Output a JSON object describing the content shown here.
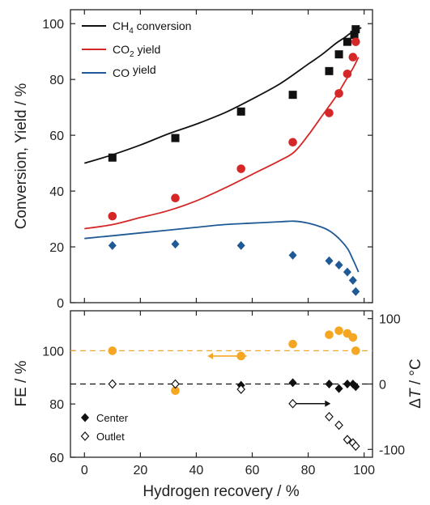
{
  "colors": {
    "ch4": "#111111",
    "co2": "#d62728",
    "co": "#1f5a96",
    "fe": "#f5a623",
    "center": "#111111",
    "outlet": "#111111"
  },
  "chart_data": [
    {
      "type": "scatter",
      "panel": "top",
      "xlabel": "Hydrogen recovery / %",
      "ylabel": "Conversion, Yield / %",
      "xlim": [
        -5,
        103
      ],
      "ylim": [
        0,
        105
      ],
      "x_ticks": [
        0,
        20,
        40,
        60,
        80,
        100
      ],
      "y_ticks": [
        0,
        20,
        40,
        60,
        80,
        100
      ],
      "legend": {
        "placement": "top-left",
        "entries": [
          {
            "key": "ch4",
            "pre": "CH",
            "sub": "4",
            "post": " conversion"
          },
          {
            "key": "co2",
            "pre": "CO",
            "sub": "2",
            "post": " yield"
          },
          {
            "key": "co",
            "pre": "CO",
            "sub": "",
            "post": " yield"
          }
        ]
      },
      "series": [
        {
          "key": "ch4",
          "marker": "square",
          "points": [
            [
              10,
              52
            ],
            [
              32.5,
              59
            ],
            [
              56,
              68.5
            ],
            [
              74.5,
              74.5
            ],
            [
              87.5,
              83
            ],
            [
              91,
              89
            ],
            [
              94,
              93.5
            ],
            [
              96.5,
              96
            ],
            [
              97,
              98
            ]
          ],
          "line": [
            [
              0,
              50
            ],
            [
              10,
              53
            ],
            [
              20,
              56.5
            ],
            [
              30,
              60.5
            ],
            [
              40,
              64
            ],
            [
              50,
              68
            ],
            [
              60,
              73
            ],
            [
              70,
              78.5
            ],
            [
              80,
              85.5
            ],
            [
              85,
              89
            ],
            [
              90,
              93
            ],
            [
              93,
              95
            ],
            [
              95,
              96.5
            ],
            [
              97.5,
              98
            ],
            [
              99,
              98.5
            ]
          ]
        },
        {
          "key": "co2",
          "marker": "circle",
          "points": [
            [
              10,
              31
            ],
            [
              32.5,
              37.5
            ],
            [
              56,
              48
            ],
            [
              74.5,
              57.5
            ],
            [
              87.5,
              68
            ],
            [
              91,
              75
            ],
            [
              94,
              82
            ],
            [
              96,
              88
            ],
            [
              97,
              93.5
            ]
          ],
          "line": [
            [
              0,
              26.5
            ],
            [
              10,
              28
            ],
            [
              20,
              30.5
            ],
            [
              30,
              33
            ],
            [
              40,
              36.5
            ],
            [
              50,
              41
            ],
            [
              60,
              46
            ],
            [
              70,
              51
            ],
            [
              75,
              54
            ],
            [
              80,
              60
            ],
            [
              85,
              67
            ],
            [
              90,
              74
            ],
            [
              93,
              79
            ],
            [
              96,
              84
            ],
            [
              98,
              88
            ]
          ]
        },
        {
          "key": "co",
          "marker": "diamond",
          "points": [
            [
              10,
              20.5
            ],
            [
              32.5,
              21
            ],
            [
              56,
              20.5
            ],
            [
              74.5,
              17
            ],
            [
              87.5,
              15
            ],
            [
              91,
              13.5
            ],
            [
              94,
              11
            ],
            [
              96,
              8
            ],
            [
              97,
              4
            ]
          ],
          "line": [
            [
              0,
              23
            ],
            [
              10,
              24
            ],
            [
              20,
              25
            ],
            [
              30,
              26
            ],
            [
              40,
              27
            ],
            [
              50,
              28
            ],
            [
              60,
              28.5
            ],
            [
              70,
              29
            ],
            [
              75,
              29.2
            ],
            [
              80,
              28.5
            ],
            [
              85,
              27
            ],
            [
              88,
              25.5
            ],
            [
              91,
              23
            ],
            [
              94,
              19.5
            ],
            [
              96,
              15.5
            ],
            [
              98,
              11
            ]
          ]
        }
      ]
    },
    {
      "type": "scatter",
      "panel": "bottom",
      "xlabel": "Hydrogen recovery / %",
      "ylabel": "FE / %",
      "ylabel_right_pre": "Δ",
      "ylabel_right_italic": "T",
      "ylabel_right_post": " / °C",
      "xlim": [
        -5,
        103
      ],
      "ylim": [
        60,
        115
      ],
      "y2lim": [
        -112,
        112
      ],
      "x_ticks": [
        0,
        20,
        40,
        60,
        80,
        100
      ],
      "y_ticks": [
        60,
        80,
        100
      ],
      "y2_ticks": [
        -100,
        0,
        100
      ],
      "reference_lines": [
        {
          "axis": "left",
          "value": 100,
          "color": "#f5a623",
          "style": "dashed"
        },
        {
          "axis": "right",
          "value": 0,
          "color": "#111111",
          "style": "dashed"
        }
      ],
      "arrows": [
        {
          "direction": "left",
          "axis": "left",
          "x_from": 58,
          "x_to": 46,
          "y": 98,
          "color": "#f5a623"
        },
        {
          "direction": "right",
          "axis": "right",
          "x_from": 75,
          "x_to": 86,
          "y": -30,
          "color": "#111111"
        }
      ],
      "legend": {
        "placement": "bottom-left",
        "entries": [
          {
            "key": "center",
            "label": "Center",
            "marker": "diamond-filled"
          },
          {
            "key": "outlet",
            "label": "Outlet",
            "marker": "diamond-open"
          }
        ]
      },
      "series": [
        {
          "key": "fe",
          "axis": "left",
          "marker": "circle",
          "points": [
            [
              10,
              100
            ],
            [
              32.5,
              85
            ],
            [
              56,
              98
            ],
            [
              74.5,
              102.5
            ],
            [
              87.5,
              106
            ],
            [
              91,
              107.5
            ],
            [
              94,
              106.5
            ],
            [
              96,
              105
            ],
            [
              97,
              100
            ]
          ]
        },
        {
          "key": "center",
          "axis": "right",
          "marker": "diamond-filled",
          "points": [
            [
              10,
              0
            ],
            [
              32.5,
              0
            ],
            [
              56,
              -2
            ],
            [
              74.5,
              2
            ],
            [
              87.5,
              0
            ],
            [
              91,
              -7
            ],
            [
              94,
              0
            ],
            [
              96,
              0
            ],
            [
              97,
              -4
            ]
          ]
        },
        {
          "key": "outlet",
          "axis": "right",
          "marker": "diamond-open",
          "points": [
            [
              10,
              0
            ],
            [
              32.5,
              0
            ],
            [
              56,
              -8
            ],
            [
              74.5,
              -30
            ],
            [
              87.5,
              -50
            ],
            [
              91,
              -63
            ],
            [
              94,
              -85
            ],
            [
              96,
              -90
            ],
            [
              97,
              -95
            ]
          ]
        }
      ]
    }
  ]
}
